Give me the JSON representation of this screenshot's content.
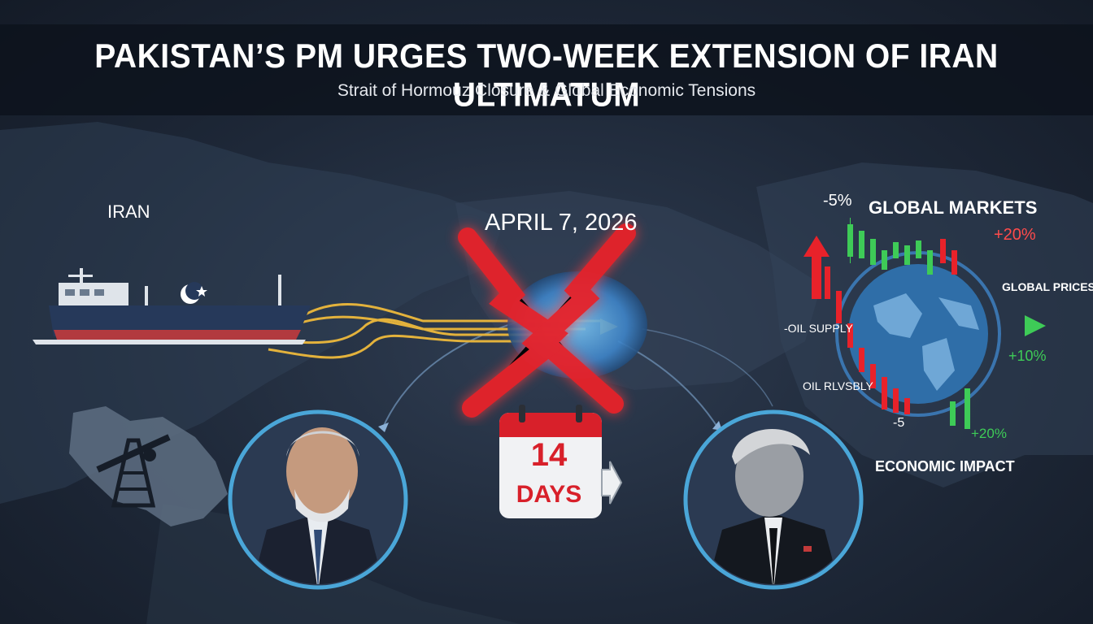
{
  "header": {
    "headline": "PAKISTAN’S PM URGES TWO-WEEK EXTENSION OF IRAN ULTIMATUM",
    "subheadline": "Strait of Hormouz Closure & Global Economic Tensions"
  },
  "map": {
    "region_label": "IRAN"
  },
  "deadline": {
    "date": "APRIL 7, 2026",
    "extension_number": "14",
    "extension_unit": "DAYS"
  },
  "markets": {
    "title": "GLOBAL MARKETS",
    "prices_label": "GLOBAL PRICES",
    "oil_supply_label": "-OIL SUPPLY",
    "oil_supply_label_2": "OIL RLVSBLY",
    "impact_label": "ECONOMIC IMPACT",
    "changes": [
      "-5%",
      "+20%",
      "+10%",
      "-5",
      "+20%"
    ]
  },
  "colors": {
    "background": "#1e2838",
    "header_band": "#0c121c",
    "alert_red": "#e8222a",
    "gain_green": "#3ecb57",
    "route_gold": "#e3b23c",
    "globe_blue": "#3e84c8"
  },
  "icons": [
    "cargo-ship-icon",
    "oil-derrick-icon",
    "calendar-icon",
    "globe-icon",
    "red-x-icon",
    "arrow-up-icon",
    "play-arrow-icon"
  ]
}
